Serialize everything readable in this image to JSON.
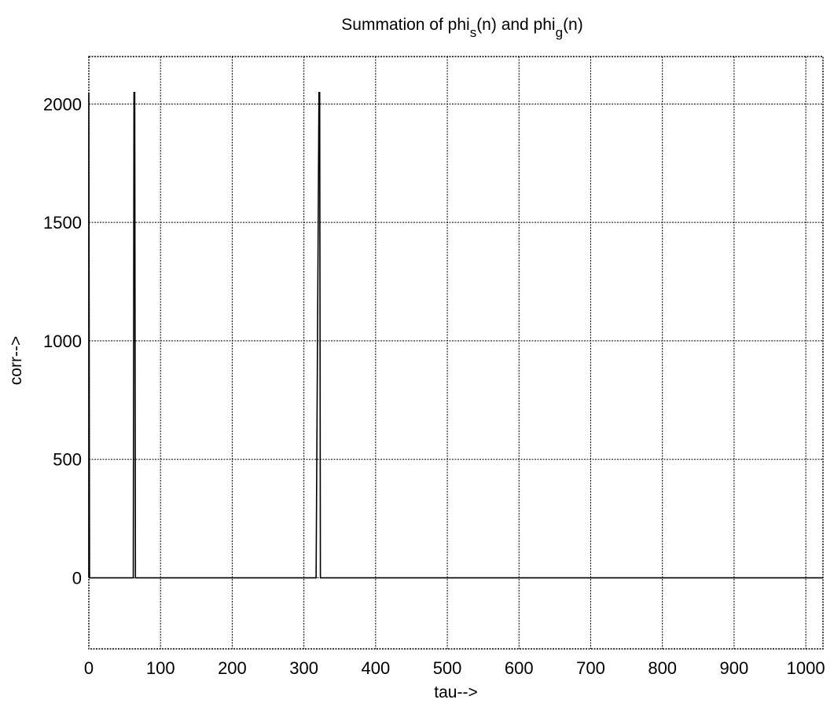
{
  "chart_data": {
    "type": "line",
    "title": {
      "prefix": "Summation of phi",
      "sub1": "s",
      "middle": "(n) and phi",
      "sub2": "g",
      "suffix": "(n)"
    },
    "xlabel": "tau-->",
    "ylabel": "corr-->",
    "xlim": [
      0,
      1024
    ],
    "ylim": [
      -300,
      2200
    ],
    "grid": true,
    "xticks": [
      0,
      100,
      200,
      300,
      400,
      500,
      600,
      700,
      800,
      900,
      1000
    ],
    "xtick_labels": [
      "0",
      "100",
      "200",
      "300",
      "400",
      "500",
      "600",
      "700",
      "800",
      "900",
      "1000"
    ],
    "yticks": [
      0,
      500,
      1000,
      1500,
      2000
    ],
    "ytick_labels": [
      "0",
      "500",
      "1000",
      "1500",
      "2000"
    ],
    "series": [
      {
        "x": [
          0,
          0,
          1,
          62,
          63,
          64,
          65,
          316,
          317,
          321,
          322,
          323,
          1024
        ],
        "y": [
          0,
          2048,
          0,
          0,
          2048,
          2048,
          0,
          0,
          0,
          2048,
          2048,
          0,
          0
        ]
      }
    ]
  }
}
